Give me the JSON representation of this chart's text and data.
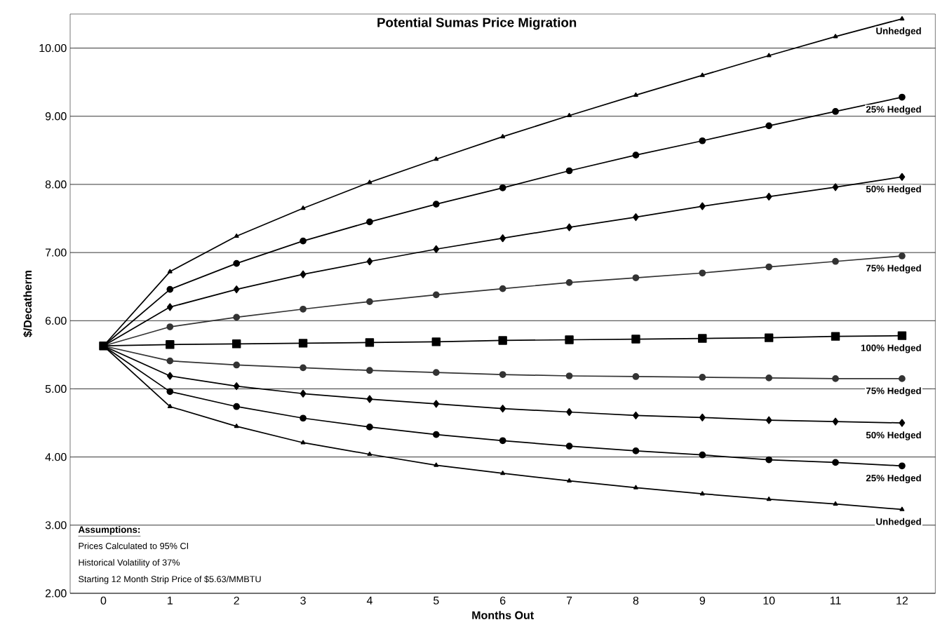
{
  "chart_data": {
    "type": "line",
    "title": "Potential Sumas Price Migration",
    "xlabel": "Months Out",
    "ylabel": "$/Decatherm",
    "categories": [
      "0",
      "1",
      "2",
      "3",
      "4",
      "5",
      "6",
      "7",
      "8",
      "9",
      "10",
      "11",
      "12"
    ],
    "ylim": [
      2,
      10.5
    ],
    "yticks": [
      {
        "value": 2,
        "label": "2.00"
      },
      {
        "value": 3,
        "label": "3.00"
      },
      {
        "value": 4,
        "label": "4.00"
      },
      {
        "value": 5,
        "label": "5.00"
      },
      {
        "value": 6,
        "label": "6.00"
      },
      {
        "value": 7,
        "label": "7.00"
      },
      {
        "value": 8,
        "label": "8.00"
      },
      {
        "value": 9,
        "label": "9.00"
      },
      {
        "value": 10,
        "label": "10.00"
      }
    ],
    "grid": "y",
    "legend": false,
    "series": [
      {
        "name": "100% Hedged",
        "color": "#000000",
        "marker": "square",
        "values": [
          5.63,
          5.65,
          5.66,
          5.67,
          5.68,
          5.69,
          5.71,
          5.72,
          5.73,
          5.74,
          5.75,
          5.77,
          5.78
        ]
      },
      {
        "name": "Unhedged",
        "color": "#000000",
        "marker": "triangle",
        "values": [
          5.63,
          6.72,
          7.24,
          7.65,
          8.03,
          8.37,
          8.7,
          9.01,
          9.31,
          9.6,
          9.89,
          10.17,
          10.43
        ]
      },
      {
        "name": "25% Hedged",
        "color": "#000000",
        "marker": "circle",
        "values": [
          5.63,
          6.46,
          6.84,
          7.17,
          7.45,
          7.71,
          7.95,
          8.2,
          8.43,
          8.64,
          8.86,
          9.07,
          9.28
        ]
      },
      {
        "name": "50% Hedged",
        "color": "#000000",
        "marker": "diamond",
        "values": [
          5.63,
          6.2,
          6.46,
          6.68,
          6.87,
          7.05,
          7.21,
          7.37,
          7.52,
          7.68,
          7.82,
          7.96,
          8.11
        ]
      },
      {
        "name": "75% Hedged",
        "color": "#333333",
        "marker": "circle",
        "values": [
          5.63,
          5.91,
          6.05,
          6.17,
          6.28,
          6.38,
          6.47,
          6.56,
          6.63,
          6.7,
          6.79,
          6.87,
          6.95
        ]
      },
      {
        "name": "75% Hedged",
        "color": "#333333",
        "marker": "circle",
        "values": [
          5.63,
          5.41,
          5.35,
          5.31,
          5.27,
          5.24,
          5.21,
          5.19,
          5.18,
          5.17,
          5.16,
          5.15,
          5.15
        ]
      },
      {
        "name": "50% Hedged",
        "color": "#000000",
        "marker": "diamond",
        "values": [
          5.63,
          5.19,
          5.04,
          4.93,
          4.85,
          4.78,
          4.71,
          4.66,
          4.61,
          4.58,
          4.54,
          4.52,
          4.5
        ]
      },
      {
        "name": "25% Hedged",
        "color": "#000000",
        "marker": "circle",
        "values": [
          5.63,
          4.96,
          4.74,
          4.57,
          4.44,
          4.33,
          4.24,
          4.16,
          4.09,
          4.03,
          3.96,
          3.92,
          3.87
        ]
      },
      {
        "name": "Unhedged",
        "color": "#000000",
        "marker": "triangle",
        "values": [
          5.63,
          4.74,
          4.45,
          4.21,
          4.04,
          3.88,
          3.76,
          3.65,
          3.55,
          3.46,
          3.38,
          3.31,
          3.23
        ]
      }
    ],
    "annotations": [
      "Assumptions:",
      "Prices Calculated to 95% CI",
      "Historical Volatility of 37%",
      "Starting 12 Month Strip Price of $5.63/MMBTU"
    ]
  }
}
